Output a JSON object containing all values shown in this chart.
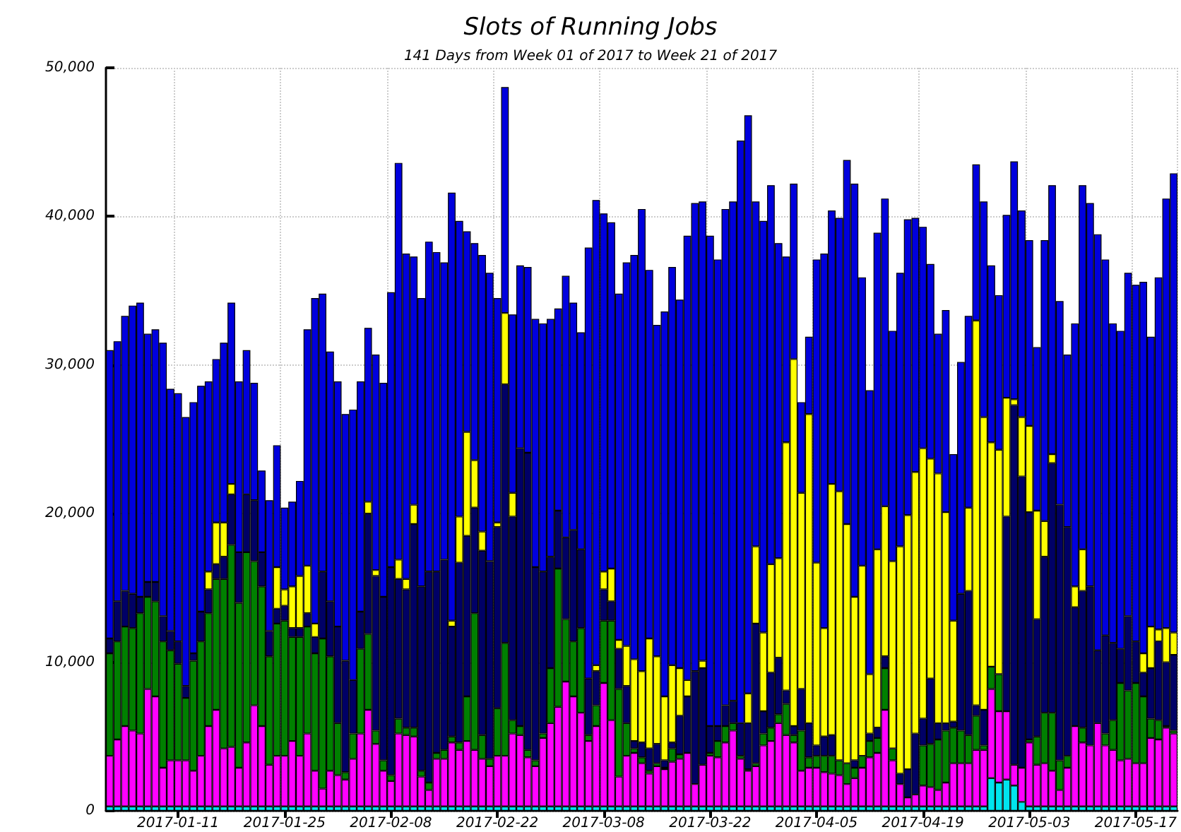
{
  "chart_data": {
    "type": "bar",
    "title": "Slots of Running Jobs",
    "subtitle": "141 Days from Week 01 of 2017 to Week 21 of 2017",
    "stacked": true,
    "grid": true,
    "ylim": [
      0,
      50000
    ],
    "yticks": [
      {
        "value": 0,
        "label": "0"
      },
      {
        "value": 10000,
        "label": "10,000"
      },
      {
        "value": 20000,
        "label": "20,000"
      },
      {
        "value": 30000,
        "label": "30,000"
      },
      {
        "value": 40000,
        "label": "40,000"
      },
      {
        "value": 50000,
        "label": "50,000"
      }
    ],
    "categories": [
      null,
      null,
      null,
      null,
      null,
      null,
      null,
      null,
      null,
      "2017-01-11",
      null,
      null,
      null,
      null,
      null,
      null,
      null,
      null,
      null,
      null,
      null,
      null,
      null,
      "2017-01-25",
      null,
      null,
      null,
      null,
      null,
      null,
      null,
      null,
      null,
      null,
      null,
      null,
      null,
      "2017-02-08",
      null,
      null,
      null,
      null,
      null,
      null,
      null,
      null,
      null,
      null,
      null,
      null,
      null,
      "2017-02-22",
      null,
      null,
      null,
      null,
      null,
      null,
      null,
      null,
      null,
      null,
      null,
      null,
      null,
      "2017-03-08",
      null,
      null,
      null,
      null,
      null,
      null,
      null,
      null,
      null,
      null,
      null,
      null,
      null,
      "2017-03-22",
      null,
      null,
      null,
      null,
      null,
      null,
      null,
      null,
      null,
      null,
      null,
      null,
      null,
      "2017-04-05",
      null,
      null,
      null,
      null,
      null,
      null,
      null,
      null,
      null,
      null,
      null,
      null,
      null,
      "2017-04-19",
      null,
      null,
      null,
      null,
      null,
      null,
      null,
      null,
      null,
      null,
      null,
      null,
      null,
      "2017-05-03",
      null,
      null,
      null,
      null,
      null,
      null,
      null,
      null,
      null,
      null,
      null,
      null,
      null,
      "2017-05-17",
      null,
      null,
      null,
      null,
      null
    ],
    "series": [
      {
        "color": "#00e5ee",
        "values": [
          300,
          300,
          300,
          300,
          300,
          300,
          300,
          300,
          300,
          300,
          300,
          300,
          300,
          300,
          300,
          300,
          300,
          300,
          300,
          300,
          300,
          300,
          300,
          300,
          300,
          300,
          300,
          300,
          300,
          300,
          300,
          300,
          300,
          300,
          300,
          300,
          300,
          300,
          300,
          300,
          300,
          300,
          300,
          300,
          300,
          300,
          300,
          300,
          300,
          300,
          300,
          300,
          300,
          300,
          300,
          300,
          300,
          300,
          300,
          300,
          300,
          300,
          300,
          300,
          300,
          300,
          300,
          300,
          300,
          300,
          300,
          300,
          300,
          300,
          300,
          300,
          300,
          300,
          300,
          300,
          300,
          300,
          300,
          300,
          300,
          300,
          300,
          300,
          300,
          300,
          300,
          300,
          300,
          300,
          300,
          300,
          300,
          300,
          300,
          300,
          300,
          300,
          300,
          300,
          300,
          300,
          300,
          300,
          300,
          300,
          300,
          300,
          300,
          300,
          300,
          300,
          2200,
          1900,
          2100,
          1700,
          600,
          300,
          300,
          300,
          300,
          300,
          300,
          300,
          300,
          300,
          300,
          300,
          300,
          300,
          300,
          300,
          300,
          300,
          300,
          300,
          300
        ]
      },
      {
        "color": "#ff00ff",
        "values": [
          3400,
          4500,
          5400,
          5100,
          4900,
          7900,
          7400,
          2600,
          3100,
          3100,
          3100,
          2400,
          3400,
          5400,
          6500,
          3900,
          4000,
          2600,
          4300,
          6800,
          5400,
          2800,
          3400,
          3400,
          4400,
          3400,
          4900,
          2400,
          1200,
          2400,
          2100,
          1800,
          3200,
          4900,
          6500,
          4200,
          2400,
          1700,
          4900,
          4800,
          4700,
          2000,
          1100,
          3200,
          3200,
          4300,
          3800,
          4400,
          3800,
          3200,
          2700,
          3400,
          3400,
          4900,
          4800,
          3300,
          2700,
          4600,
          5600,
          6700,
          8400,
          7400,
          6300,
          4400,
          5400,
          8300,
          5800,
          2000,
          3400,
          3600,
          2900,
          2200,
          2700,
          2500,
          3000,
          3200,
          3600,
          1500,
          2800,
          3400,
          3300,
          4300,
          5100,
          3200,
          2400,
          2700,
          4100,
          4400,
          5600,
          4800,
          4300,
          2400,
          2600,
          2600,
          2300,
          2200,
          2100,
          1500,
          1900,
          2600,
          3300,
          3600,
          6500,
          3100,
          1500,
          600,
          800,
          1400,
          1300,
          1100,
          1600,
          2900,
          2900,
          2900,
          3800,
          3800,
          6000,
          4800,
          4600,
          1400,
          2300,
          4300,
          2800,
          2900,
          2400,
          1100,
          2600,
          5400,
          4300,
          4100,
          5600,
          4100,
          3800,
          3100,
          3200,
          2900,
          2900,
          4600,
          4500,
          5300,
          4900
        ]
      },
      {
        "color": "#008000",
        "values": [
          6900,
          6600,
          6700,
          6900,
          8100,
          6200,
          6400,
          8500,
          7400,
          6500,
          4200,
          7400,
          7700,
          7600,
          8800,
          11400,
          13600,
          11100,
          12800,
          9700,
          9400,
          7300,
          8900,
          9100,
          7000,
          8000,
          7200,
          7900,
          10100,
          7700,
          3500,
          500,
          1700,
          5700,
          5100,
          900,
          700,
          400,
          1000,
          500,
          600,
          400,
          500,
          400,
          600,
          400,
          500,
          3000,
          9200,
          1600,
          500,
          3200,
          7600,
          900,
          600,
          500,
          400,
          300,
          3700,
          9300,
          4200,
          3700,
          5700,
          400,
          1400,
          4200,
          6700,
          5900,
          2200,
          300,
          400,
          200,
          200,
          100,
          900,
          300,
          0,
          0,
          0,
          200,
          1100,
          1100,
          500,
          200,
          100,
          200,
          800,
          900,
          600,
          2100,
          500,
          2700,
          700,
          800,
          1100,
          1200,
          1000,
          1400,
          700,
          800,
          1100,
          1000,
          2800,
          800,
          0,
          0,
          0,
          2700,
          2900,
          3400,
          3500,
          2400,
          2200,
          1900,
          2300,
          300,
          1500,
          2500,
          0,
          0,
          0,
          200,
          1900,
          3400,
          3900,
          2000,
          800,
          0,
          1000,
          0,
          0,
          800,
          2000,
          5200,
          4600,
          5400,
          4500,
          1300,
          1300,
          100,
          200
        ]
      },
      {
        "color": "#000066",
        "values": [
          1000,
          2700,
          2400,
          2300,
          1100,
          1000,
          1300,
          1700,
          1300,
          1500,
          800,
          500,
          2000,
          1600,
          1000,
          1500,
          3400,
          3400,
          3900,
          4100,
          2300,
          1700,
          1000,
          1000,
          600,
          600,
          900,
          1100,
          4500,
          3700,
          6500,
          7500,
          3600,
          2500,
          8100,
          10400,
          11000,
          14000,
          9400,
          9300,
          13700,
          12400,
          14200,
          12200,
          12800,
          7400,
          12100,
          10800,
          7100,
          12400,
          13300,
          12200,
          17400,
          13700,
          18700,
          20000,
          13000,
          10900,
          7500,
          3900,
          5500,
          7500,
          5300,
          3800,
          2300,
          2100,
          1300,
          2700,
          2500,
          500,
          1000,
          1500,
          1300,
          500,
          400,
          2600,
          3800,
          7600,
          6500,
          1800,
          1000,
          1400,
          1500,
          2200,
          3100,
          9400,
          1500,
          3700,
          3800,
          900,
          600,
          2800,
          2300,
          700,
          1300,
          1400,
          0,
          0,
          500,
          0,
          500,
          700,
          800,
          0,
          700,
          1900,
          4100,
          1800,
          4400,
          1100,
          500,
          400,
          9200,
          9700,
          700,
          2400,
          0,
          0,
          13100,
          24200,
          19600,
          15300,
          7900,
          10500,
          16800,
          17200,
          15400,
          8000,
          9200,
          10700,
          4900,
          6600,
          5200,
          2300,
          5000,
          2800,
          1600,
          3400,
          5300,
          4300,
          5100
        ]
      },
      {
        "color": "#ffff00",
        "values": [
          0,
          0,
          0,
          0,
          0,
          0,
          0,
          0,
          0,
          0,
          0,
          0,
          0,
          1200,
          2800,
          2300,
          700,
          0,
          0,
          0,
          0,
          0,
          2800,
          1100,
          2800,
          3500,
          3200,
          900,
          0,
          0,
          0,
          0,
          0,
          0,
          800,
          400,
          0,
          0,
          1300,
          700,
          1300,
          0,
          0,
          0,
          0,
          400,
          3100,
          7000,
          3200,
          1300,
          0,
          300,
          4800,
          1600,
          0,
          0,
          0,
          0,
          0,
          0,
          0,
          0,
          0,
          0,
          400,
          1200,
          2200,
          600,
          2700,
          5500,
          4800,
          7400,
          5900,
          4300,
          5200,
          3200,
          1100,
          0,
          500,
          0,
          0,
          0,
          0,
          0,
          2000,
          5200,
          5300,
          7300,
          6700,
          16700,
          24700,
          13200,
          20800,
          12300,
          7300,
          16900,
          18100,
          16100,
          11000,
          12800,
          4000,
          12000,
          10100,
          12600,
          15300,
          17100,
          17600,
          18200,
          14800,
          16800,
          14200,
          6800,
          0,
          5600,
          25900,
          19700,
          15100,
          15100,
          8000,
          400,
          4000,
          5800,
          7300,
          2400,
          600,
          0,
          0,
          1400,
          2800,
          0,
          0,
          0,
          0,
          0,
          0,
          0,
          1300,
          2800,
          800,
          2300,
          1500
        ]
      },
      {
        "color": "#0000dd",
        "values": [
          19400,
          17500,
          18500,
          19400,
          19800,
          16700,
          17000,
          18400,
          16300,
          16700,
          18100,
          16900,
          15200,
          12800,
          11000,
          12100,
          12200,
          11500,
          9700,
          7900,
          5500,
          8800,
          8200,
          5500,
          5700,
          6400,
          15900,
          21900,
          18700,
          16800,
          16500,
          16600,
          18200,
          15500,
          11700,
          14500,
          14400,
          18500,
          26700,
          21900,
          16700,
          19400,
          22200,
          21500,
          20000,
          28800,
          19900,
          13500,
          14600,
          18600,
          19400,
          15100,
          15200,
          12000,
          12300,
          12500,
          16700,
          16700,
          16000,
          13600,
          17600,
          15300,
          14600,
          29000,
          31300,
          24100,
          23300,
          23300,
          25800,
          27200,
          31100,
          24800,
          22300,
          25900,
          26800,
          24800,
          29900,
          31500,
          30900,
          33000,
          31400,
          33400,
          33600,
          39200,
          38900,
          23200,
          27700,
          25500,
          21200,
          12500,
          11800,
          6100,
          5200,
          20400,
          25200,
          18400,
          18400,
          24500,
          27800,
          19400,
          19100,
          21300,
          20700,
          15500,
          18400,
          19900,
          17100,
          14900,
          13100,
          9400,
          13600,
          11200,
          15600,
          12900,
          10500,
          14500,
          11900,
          10400,
          12300,
          16000,
          13900,
          12500,
          11000,
          18900,
          18100,
          13700,
          11600,
          17700,
          24500,
          25800,
          28000,
          25300,
          21500,
          21400,
          23100,
          24000,
          25000,
          19500,
          23700,
          28900,
          30900
        ]
      }
    ]
  }
}
